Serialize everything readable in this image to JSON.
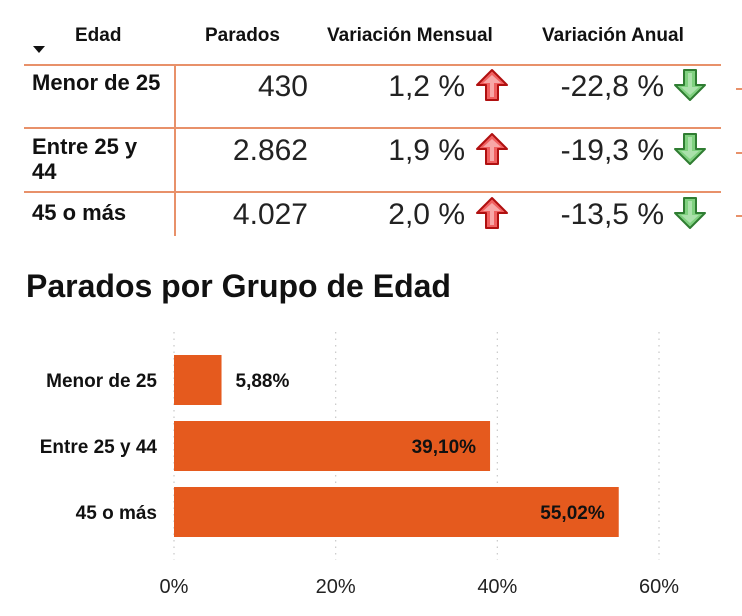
{
  "table": {
    "headers": [
      "Edad",
      "Parados",
      "Variación Mensual",
      "Variación Anual"
    ],
    "rows": [
      {
        "label": "Menor de 25",
        "parados": "430",
        "mensual": "1,2 %",
        "anual": "-22,8 %",
        "mensual_dir": "up",
        "anual_dir": "down"
      },
      {
        "label": "Entre 25 y 44",
        "parados": "2.862",
        "mensual": "1,9 %",
        "anual": "-19,3 %",
        "mensual_dir": "up",
        "anual_dir": "down"
      },
      {
        "label": "45 o más",
        "parados": "4.027",
        "mensual": "2,0 %",
        "anual": "-13,5 %",
        "mensual_dir": "up",
        "anual_dir": "down"
      }
    ],
    "icons": {
      "up": "red-up-arrow-icon",
      "down": "green-down-arrow-icon",
      "sort": "sort-down-icon"
    }
  },
  "chart_title": "Parados por Grupo de Edad",
  "colors": {
    "bar": "#e55a1e",
    "divider": "#e8916a",
    "arrow_up": "#e02020",
    "arrow_down": "#4caf50"
  },
  "chart_data": {
    "type": "bar",
    "orientation": "horizontal",
    "title": "Parados por Grupo de Edad",
    "categories": [
      "Menor de 25",
      "Entre 25 y 44",
      "45 o más"
    ],
    "values": [
      5.88,
      39.1,
      55.02
    ],
    "value_labels": [
      "5,88%",
      "39,10%",
      "55,02%"
    ],
    "xlim": [
      0,
      60
    ],
    "xticks": [
      "0%",
      "20%",
      "40%",
      "60%"
    ],
    "grid": "vertical dotted"
  }
}
